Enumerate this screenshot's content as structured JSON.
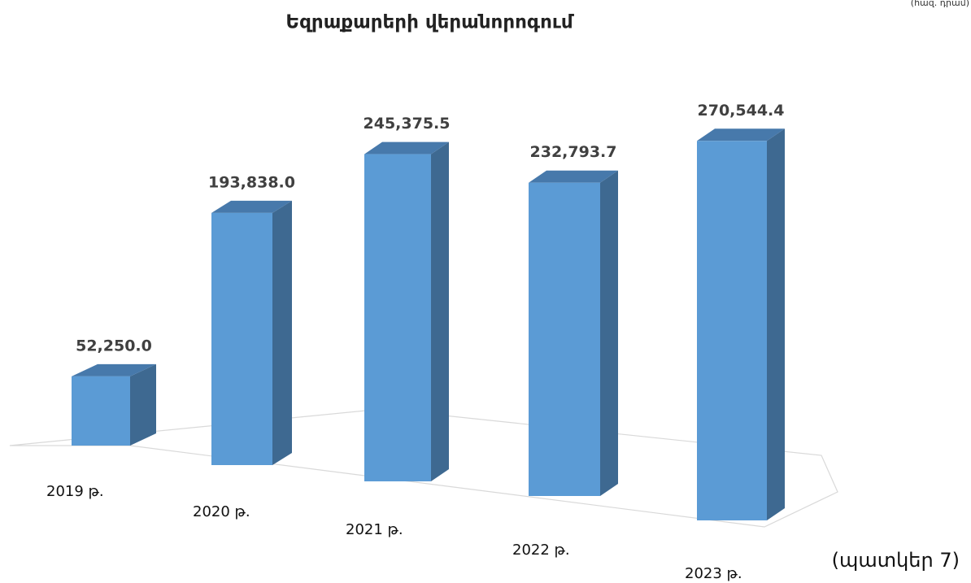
{
  "chart_data": {
    "type": "bar3d",
    "title": "Եզրաքարերի վերանորոգում",
    "unit_label": "(հազ. դրամ)",
    "caption": "(պատկեր 7)",
    "categories": [
      "2019 թ.",
      "2020 թ.",
      "2021 թ.",
      "2022 թ.",
      "2023 թ."
    ],
    "values": [
      52250.0,
      193838.0,
      245375.5,
      232793.7,
      270544.4
    ],
    "value_labels": [
      "52,250.0",
      "193,838.0",
      "245,375.5",
      "232,793.7",
      "270,544.4"
    ],
    "color": "#5b9bd5"
  }
}
